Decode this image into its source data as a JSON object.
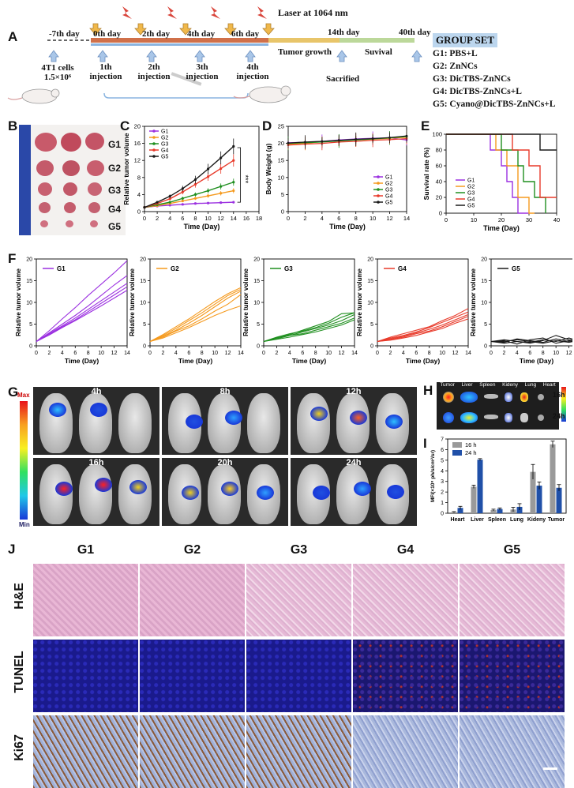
{
  "panel_labels": {
    "A": "A",
    "B": "B",
    "C": "C",
    "D": "D",
    "E": "E",
    "F": "F",
    "G": "G",
    "H": "H",
    "I": "I",
    "J": "J"
  },
  "timeline": {
    "day_m7": "-7th day",
    "day_0": "0th day",
    "day_2": "2th day",
    "day_4": "4th day",
    "day_6": "6th day",
    "day_14": "14th day",
    "day_40": "40th day",
    "laser": "Laser at 1064 nm",
    "cells_line1": "4T1 cells",
    "cells_line2": "1.5×10⁶",
    "inj1_a": "1th",
    "inj1_b": "injection",
    "inj2_a": "2th",
    "inj2_b": "injection",
    "inj3_a": "3th",
    "inj3_b": "injection",
    "inj4_a": "4th",
    "inj4_b": "injection",
    "tumor_growth": "Tumor growth",
    "survival": "Suvival",
    "sacrificed": "Sacrified"
  },
  "group_set": {
    "title": "GROUP SET",
    "g1": "G1:  PBS+L",
    "g2": "G2:  ZnNCs",
    "g3": "G3:  DicTBS-ZnNCs",
    "g4": "G4:  DicTBS-ZnNCs+L",
    "g5": "G5:  Cyano@DicTBS-ZnNCs+L"
  },
  "tumor_photo_labels": [
    "G1",
    "G2",
    "G3",
    "G4",
    "G5"
  ],
  "colors": {
    "g1": "#9b30e0",
    "g2": "#f59a1e",
    "g3": "#1f8f1f",
    "g4": "#e83a2a",
    "g5": "#1a1a1a",
    "group_bg": "#bcd6ee",
    "bar16": "#9a9a9a",
    "bar24": "#2050a8"
  },
  "chart_data": [
    {
      "id": "C",
      "type": "line",
      "xlabel": "Time (Day)",
      "ylabel": "Relative tumor volume",
      "xlim": [
        0,
        18
      ],
      "ylim": [
        0,
        20
      ],
      "xticks": [
        0,
        2,
        4,
        6,
        8,
        10,
        12,
        14,
        16,
        18
      ],
      "yticks": [
        0,
        4,
        8,
        12,
        16,
        20
      ],
      "x": [
        0,
        2,
        4,
        6,
        8,
        10,
        12,
        14
      ],
      "annotation": "***",
      "series": [
        {
          "name": "G1",
          "values": [
            1,
            1.3,
            1.5,
            1.7,
            1.9,
            2.0,
            2.1,
            2.2
          ]
        },
        {
          "name": "G2",
          "values": [
            1,
            1.4,
            1.9,
            2.5,
            3.1,
            3.7,
            4.3,
            4.9
          ]
        },
        {
          "name": "G3",
          "values": [
            1,
            1.6,
            2.2,
            3.1,
            4.0,
            4.9,
            5.9,
            6.9
          ]
        },
        {
          "name": "G4",
          "values": [
            1,
            1.9,
            3.0,
            4.6,
            6.4,
            8.2,
            10.1,
            12.0
          ]
        },
        {
          "name": "G5",
          "values": [
            1,
            2.2,
            3.6,
            5.4,
            7.5,
            10.0,
            12.6,
            15.3
          ]
        }
      ]
    },
    {
      "id": "D",
      "type": "line",
      "xlabel": "Time (Day)",
      "ylabel": "Body Weight (g)",
      "xlim": [
        0,
        14
      ],
      "ylim": [
        0,
        25
      ],
      "xticks": [
        0,
        2,
        4,
        6,
        8,
        10,
        12,
        14
      ],
      "yticks": [
        0,
        5,
        10,
        15,
        20,
        25
      ],
      "x": [
        0,
        2,
        4,
        6,
        8,
        10,
        12,
        14
      ],
      "series": [
        {
          "name": "G1",
          "values": [
            20.2,
            20.3,
            20.6,
            21.0,
            21.3,
            21.5,
            21.6,
            21.0
          ]
        },
        {
          "name": "G2",
          "values": [
            19.8,
            20.0,
            20.5,
            20.8,
            21.0,
            21.2,
            21.5,
            21.8
          ]
        },
        {
          "name": "G3",
          "values": [
            20.0,
            20.2,
            20.4,
            20.7,
            21.0,
            21.3,
            21.6,
            22.0
          ]
        },
        {
          "name": "G4",
          "values": [
            19.5,
            19.8,
            20.0,
            20.4,
            20.6,
            20.9,
            21.1,
            21.4
          ]
        },
        {
          "name": "G5",
          "values": [
            20.1,
            20.4,
            20.6,
            20.9,
            21.2,
            21.4,
            21.7,
            22.2
          ]
        }
      ]
    },
    {
      "id": "E",
      "type": "line",
      "xlabel": "Time (Day)",
      "ylabel": "Survival rate (%)",
      "xlim": [
        0,
        40
      ],
      "ylim": [
        0,
        100
      ],
      "xticks": [
        0,
        10,
        20,
        30,
        40
      ],
      "yticks": [
        0,
        20,
        40,
        60,
        80,
        100
      ],
      "series": [
        {
          "name": "G1",
          "steps": [
            [
              0,
              100
            ],
            [
              16,
              100
            ],
            [
              16,
              80
            ],
            [
              20,
              80
            ],
            [
              20,
              60
            ],
            [
              22,
              60
            ],
            [
              22,
              40
            ],
            [
              24,
              40
            ],
            [
              24,
              20
            ],
            [
              26,
              20
            ],
            [
              26,
              0
            ],
            [
              30,
              0
            ]
          ]
        },
        {
          "name": "G2",
          "steps": [
            [
              0,
              100
            ],
            [
              18,
              100
            ],
            [
              18,
              80
            ],
            [
              22,
              80
            ],
            [
              22,
              60
            ],
            [
              26,
              60
            ],
            [
              26,
              20
            ],
            [
              30,
              20
            ],
            [
              30,
              0
            ],
            [
              32,
              0
            ]
          ]
        },
        {
          "name": "G3",
          "steps": [
            [
              0,
              100
            ],
            [
              20,
              100
            ],
            [
              20,
              80
            ],
            [
              26,
              80
            ],
            [
              26,
              60
            ],
            [
              28,
              60
            ],
            [
              28,
              40
            ],
            [
              32,
              40
            ],
            [
              32,
              20
            ],
            [
              36,
              20
            ],
            [
              36,
              0
            ]
          ]
        },
        {
          "name": "G4",
          "steps": [
            [
              0,
              100
            ],
            [
              24,
              100
            ],
            [
              24,
              80
            ],
            [
              30,
              80
            ],
            [
              30,
              60
            ],
            [
              34,
              60
            ],
            [
              34,
              20
            ],
            [
              40,
              20
            ]
          ]
        },
        {
          "name": "G5",
          "steps": [
            [
              0,
              100
            ],
            [
              34,
              100
            ],
            [
              34,
              80
            ],
            [
              40,
              80
            ]
          ]
        }
      ]
    },
    {
      "id": "F",
      "type": "line",
      "xlabel": "Time (Day)",
      "ylabel": "Relative tumor volume",
      "xlim": [
        0,
        14
      ],
      "ylim": [
        0,
        20
      ],
      "xticks": [
        0,
        2,
        4,
        6,
        8,
        10,
        12,
        14
      ],
      "yticks": [
        0,
        5,
        10,
        15,
        20
      ],
      "x": [
        0,
        2,
        4,
        6,
        8,
        10,
        12,
        14
      ],
      "panels": [
        {
          "name": "G1",
          "mice": [
            [
              1,
              3.5,
              6.2,
              8.8,
              11.6,
              14.2,
              16.8,
              19.6
            ],
            [
              1,
              3.0,
              5.0,
              7.0,
              9.2,
              11.6,
              14.0,
              16.2
            ],
            [
              1,
              2.8,
              4.6,
              6.4,
              8.4,
              10.4,
              12.4,
              14.4
            ],
            [
              1,
              2.6,
              4.4,
              6.0,
              7.9,
              9.8,
              11.7,
              13.6
            ],
            [
              1,
              2.5,
              4.2,
              5.8,
              7.5,
              9.2,
              11.0,
              12.8
            ]
          ]
        },
        {
          "name": "G2",
          "mice": [
            [
              1,
              2.6,
              4.4,
              6.2,
              8.2,
              10.2,
              12.0,
              13.4
            ],
            [
              1,
              2.4,
              4.0,
              5.8,
              7.6,
              9.6,
              11.6,
              13.0
            ],
            [
              1,
              2.2,
              3.6,
              5.2,
              7.0,
              9.0,
              11.0,
              12.6
            ],
            [
              1,
              2.0,
              3.4,
              4.6,
              6.2,
              8.0,
              9.6,
              11.8
            ],
            [
              1,
              1.8,
              3.0,
              4.2,
              5.6,
              7.0,
              8.2,
              9.2
            ]
          ]
        },
        {
          "name": "G3",
          "mice": [
            [
              1,
              1.8,
              2.6,
              3.6,
              4.6,
              5.6,
              7.4,
              7.6
            ],
            [
              1,
              2.0,
              2.8,
              3.4,
              4.2,
              5.2,
              6.6,
              7.6
            ],
            [
              1,
              1.6,
              2.4,
              3.2,
              4.0,
              4.8,
              5.8,
              7.2
            ],
            [
              1,
              1.9,
              2.4,
              2.8,
              3.6,
              4.4,
              5.2,
              6.4
            ],
            [
              1,
              1.5,
              2.0,
              2.6,
              3.2,
              4.0,
              4.8,
              6.0
            ]
          ]
        },
        {
          "name": "G4",
          "mice": [
            [
              1,
              2.0,
              2.8,
              3.6,
              4.4,
              5.8,
              7.0,
              8.6
            ],
            [
              1,
              1.8,
              2.4,
              3.2,
              4.2,
              5.4,
              6.6,
              7.8
            ],
            [
              1,
              1.6,
              2.2,
              3.0,
              3.8,
              4.8,
              6.0,
              7.2
            ],
            [
              1,
              1.4,
              2.0,
              2.8,
              3.4,
              4.4,
              5.6,
              6.8
            ],
            [
              1,
              1.3,
              1.8,
              2.4,
              3.2,
              4.0,
              5.2,
              6.2
            ]
          ]
        },
        {
          "name": "G5",
          "mice": [
            [
              1,
              1.4,
              1.0,
              0.6,
              1.2,
              2.4,
              1.4,
              1.2
            ],
            [
              1,
              0.8,
              1.6,
              1.2,
              0.8,
              1.6,
              1.0,
              1.6
            ],
            [
              1,
              1.2,
              0.4,
              1.4,
              1.8,
              0.6,
              1.2,
              0.8
            ],
            [
              1,
              0.6,
              1.0,
              0.8,
              1.4,
              1.0,
              1.8,
              1.0
            ],
            [
              1,
              1.0,
              1.4,
              1.0,
              0.6,
              1.2,
              0.8,
              1.4
            ]
          ]
        }
      ]
    },
    {
      "id": "I",
      "type": "bar",
      "ylabel": "MFI(×10⁸ ph/s/cm²/sr)",
      "ylim": [
        0,
        7
      ],
      "yticks": [
        0,
        1,
        2,
        3,
        4,
        5,
        6,
        7
      ],
      "categories": [
        "Heart",
        "Liver",
        "Spleen",
        "Lung",
        "Kideny",
        "Tumor"
      ],
      "series": [
        {
          "name": "16 h",
          "values": [
            0.1,
            2.5,
            0.3,
            0.35,
            3.9,
            6.5
          ],
          "errors": [
            0.05,
            0.15,
            0.08,
            0.2,
            0.7,
            0.3
          ]
        },
        {
          "name": "24 h",
          "values": [
            0.5,
            5.05,
            0.4,
            0.6,
            2.6,
            2.4
          ],
          "errors": [
            0.15,
            0.1,
            0.1,
            0.3,
            0.35,
            0.3
          ]
        }
      ]
    }
  ],
  "imaging": {
    "max": "Max",
    "min": "Min",
    "times": [
      "4h",
      "8h",
      "12h",
      "16h",
      "20h",
      "24h"
    ]
  },
  "organs": {
    "labels": [
      "Tumor",
      "Liver",
      "Spleen",
      "Kideny",
      "Lung",
      "Heart"
    ],
    "t16": "16h",
    "t24": "24h"
  },
  "histology": {
    "groups": [
      "G1",
      "G2",
      "G3",
      "G4",
      "G5"
    ],
    "rows": [
      "H&E",
      "TUNEL",
      "Ki67"
    ]
  }
}
